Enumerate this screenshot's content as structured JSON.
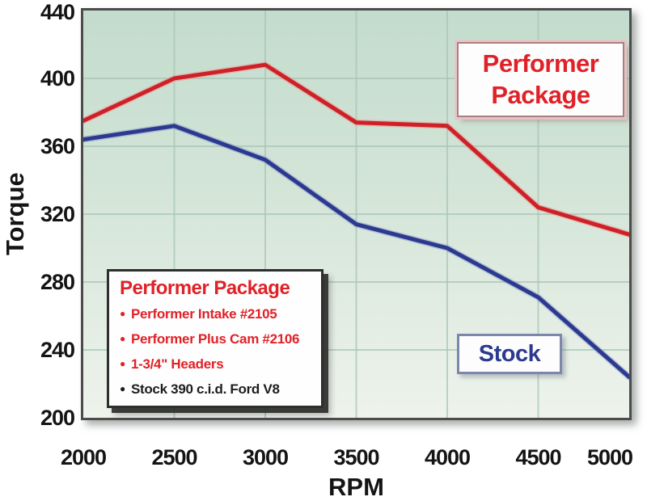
{
  "chart_data": {
    "type": "line",
    "xlabel": "RPM",
    "ylabel": "Torque",
    "xlim": [
      2000,
      5000
    ],
    "ylim": [
      200,
      440
    ],
    "x": [
      2000,
      2500,
      3000,
      3500,
      4000,
      4500,
      5000
    ],
    "x_ticks": [
      "2000",
      "2500",
      "3000",
      "3500",
      "4000",
      "4500",
      "5000"
    ],
    "y_tick_values": [
      440,
      400,
      360,
      320,
      280,
      240,
      200
    ],
    "y_ticks": [
      "440",
      "400",
      "360",
      "320",
      "280",
      "240",
      "200"
    ],
    "grid": true,
    "legend_position": "inline-labels",
    "series": [
      {
        "name": "Performer Package",
        "color": "#ce2127",
        "halo": "#e89a97",
        "values": [
          375,
          400,
          408,
          374,
          372,
          324,
          308
        ]
      },
      {
        "name": "Stock",
        "color": "#2b3a8f",
        "halo": "#93a0cd",
        "values": [
          364,
          372,
          352,
          314,
          300,
          271,
          224
        ]
      }
    ]
  },
  "annotations": {
    "performer_label": {
      "line1": "Performer",
      "line2": "Package",
      "color": "#e02128"
    },
    "stock_label": {
      "text": "Stock",
      "color": "#2b3a8f"
    }
  },
  "legend_box": {
    "title": "Performer Package",
    "title_color": "#e02128",
    "items": [
      {
        "text": "Performer Intake #2105",
        "color": "#e02128"
      },
      {
        "text": "Performer Plus Cam #2106",
        "color": "#e02128"
      },
      {
        "text": "1-3/4\" Headers",
        "color": "#e02128"
      },
      {
        "text": "Stock 390 c.i.d. Ford V8",
        "color": "#1d1d1d"
      }
    ]
  },
  "colors": {
    "gridline": "#a9c6b6",
    "frame": "#4c4c4c",
    "tick_text": "#141414"
  }
}
